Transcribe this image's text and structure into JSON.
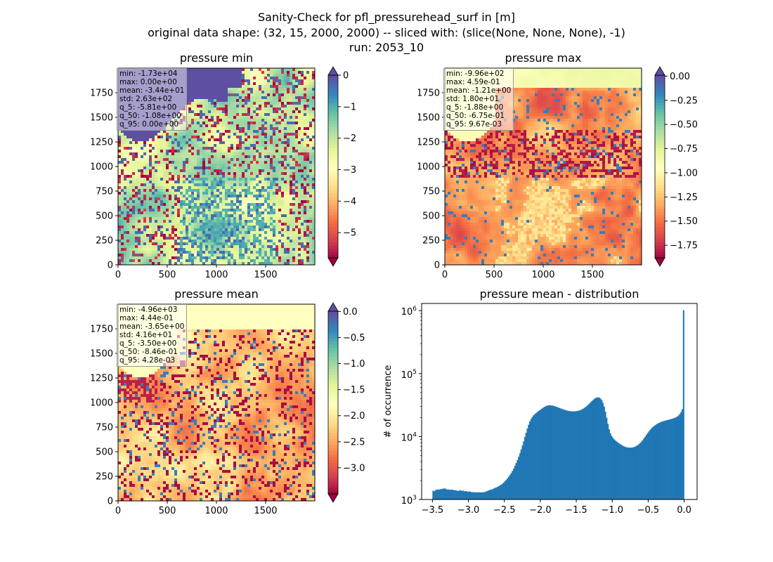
{
  "figure": {
    "suptitle": [
      "Sanity-Check for pfl_pressurehead_surf in [m]",
      "original data shape: (32, 15, 2000, 2000) -- sliced with: (slice(None, None, None), -1)",
      "run: 2053_10"
    ]
  },
  "chart_data": [
    {
      "type": "heatmap",
      "title": "pressure min",
      "colormap": "Spectral",
      "xlim": [
        0,
        2000
      ],
      "ylim": [
        0,
        2000
      ],
      "xticks": [
        "0",
        "500",
        "1000",
        "1500"
      ],
      "yticks": [
        "0",
        "250",
        "500",
        "750",
        "1000",
        "1250",
        "1500",
        "1750"
      ],
      "colorbar": {
        "range": [
          -5.8,
          0
        ],
        "extend": "both",
        "ticks": [
          "0",
          "−1",
          "−2",
          "−3",
          "−4",
          "−5"
        ]
      },
      "stats": [
        "min: -1.73e+04",
        "max: 0.00e+00",
        "mean: -3.44e+01",
        "std: 2.63e+02",
        "q_5: -5.81e+00",
        "q_50: -1.08e+00",
        "q_95: 0.00e+00"
      ]
    },
    {
      "type": "heatmap",
      "title": "pressure max",
      "colormap": "Spectral",
      "xlim": [
        0,
        2000
      ],
      "ylim": [
        0,
        2000
      ],
      "xticks": [
        "0",
        "500",
        "1000",
        "1500"
      ],
      "yticks": [
        "0",
        "250",
        "500",
        "750",
        "1000",
        "1250",
        "1500",
        "1750"
      ],
      "colorbar": {
        "range": [
          -1.88,
          0.01
        ],
        "extend": "both",
        "ticks": [
          "0.00",
          "−0.25",
          "−0.50",
          "−0.75",
          "−1.00",
          "−1.25",
          "−1.50",
          "−1.75"
        ]
      },
      "stats": [
        "min: -9.96e+02",
        "max: 4.59e-01",
        "mean: -1.21e+00",
        "std: 1.80e+01",
        "q_5: -1.88e+00",
        "q_50: -6.75e-01",
        "q_95: 9.67e-03"
      ]
    },
    {
      "type": "heatmap",
      "title": "pressure mean",
      "colormap": "Spectral",
      "xlim": [
        0,
        2000
      ],
      "ylim": [
        0,
        2000
      ],
      "xticks": [
        "0",
        "500",
        "1000",
        "1500"
      ],
      "yticks": [
        "0",
        "250",
        "500",
        "750",
        "1000",
        "1250",
        "1500",
        "1750"
      ],
      "colorbar": {
        "range": [
          -3.5,
          0.0043
        ],
        "extend": "both",
        "ticks": [
          "0.0",
          "−0.5",
          "−1.0",
          "−1.5",
          "−2.0",
          "−2.5",
          "−3.0"
        ]
      },
      "stats": [
        "min: -4.96e+03",
        "max: 4.44e-01",
        "mean: -3.65e+00",
        "std: 4.16e+01",
        "q_5: -3.50e+00",
        "q_50: -8.46e-01",
        "q_95: 4.28e-03"
      ]
    },
    {
      "type": "bar",
      "title": "pressure mean - distribution",
      "xlabel": "",
      "ylabel": "# of occurrence",
      "xlim": [
        -3.65,
        0.18
      ],
      "yscale": "log",
      "ylim": [
        1000,
        1300000
      ],
      "xticks": [
        -3.5,
        -3.0,
        -2.5,
        -2.0,
        -1.5,
        -1.0,
        -0.5,
        0.0
      ],
      "xtick_labels": [
        "−3.5",
        "−3.0",
        "−2.5",
        "−2.0",
        "−1.5",
        "−1.0",
        "−0.5",
        "0.0"
      ],
      "yticks": [
        1000,
        10000,
        100000,
        1000000
      ],
      "ytick_labels": [
        "10",
        "10",
        "10",
        "10"
      ],
      "ytick_exponents": [
        "3",
        "4",
        "5",
        "6"
      ],
      "bar_color": "#1f77b4",
      "bin_edges": [
        -3.5,
        0.0
      ],
      "bin_count": 200,
      "values": [
        1380,
        1350,
        1412,
        1432,
        1439,
        1444,
        1461,
        1459,
        1490,
        1494,
        1487,
        1440,
        1435,
        1444,
        1418,
        1433,
        1429,
        1397,
        1405,
        1383,
        1367,
        1385,
        1407,
        1367,
        1393,
        1343,
        1359,
        1347,
        1326,
        1345,
        1332,
        1307,
        1306,
        1301,
        1300,
        1296,
        1300,
        1300,
        1296,
        1300,
        1300,
        1304,
        1321,
        1346,
        1367,
        1397,
        1426,
        1437,
        1460,
        1495,
        1530,
        1553,
        1588,
        1625,
        1671,
        1722,
        1788,
        1864,
        1952,
        2050,
        2162,
        2293,
        2452,
        2633,
        2847,
        3103,
        3423,
        3808,
        4239,
        4779,
        5426,
        6201,
        7200,
        8373,
        9840,
        11483,
        13418,
        15402,
        17363,
        18960,
        20480,
        21677,
        22679,
        23587,
        24512,
        25343,
        26224,
        27091,
        28010,
        28869,
        29697,
        30419,
        30984,
        31276,
        31415,
        31321,
        31091,
        30780,
        30394,
        29933,
        29434,
        28903,
        28379,
        27911,
        27437,
        26962,
        26584,
        26199,
        25869,
        25591,
        25391,
        25229,
        25113,
        25059,
        25109,
        25250,
        25428,
        25663,
        25998,
        26429,
        27026,
        27710,
        28568,
        29512,
        30630,
        31935,
        33373,
        34901,
        36513,
        38124,
        39681,
        40914,
        41750,
        41991,
        41560,
        40274,
        37875,
        34346,
        29862,
        24829,
        19926,
        15910,
        13032,
        11269,
        10244,
        9555,
        9031,
        8648,
        8322,
        8027,
        7800,
        7560,
        7342,
        7125,
        6979,
        6849,
        6760,
        6704,
        6670,
        6653,
        6670,
        6733,
        6801,
        6912,
        7083,
        7299,
        7569,
        7896,
        8289,
        8759,
        9358,
        9962,
        10652,
        11367,
        12025,
        12740,
        13385,
        14051,
        14583,
        15100,
        15567,
        16026,
        16415,
        16755,
        17088,
        17372,
        17632,
        17857,
        18090,
        18301,
        18499,
        18703,
        18949,
        19195,
        19525,
        19874,
        20286,
        20852,
        21685,
        22900,
        24617,
        27134,
        1020000
      ]
    }
  ]
}
